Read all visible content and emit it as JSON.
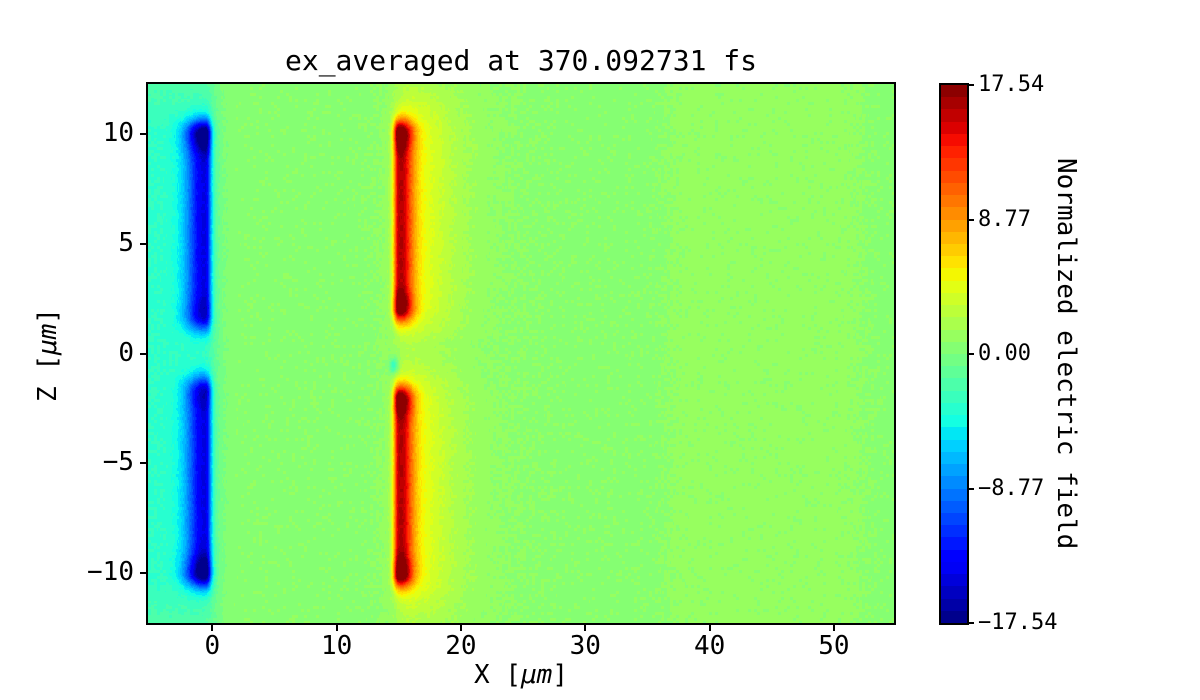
{
  "chart_data": {
    "type": "heatmap",
    "title": "ex_averaged at 370.092731 fs",
    "xlabel_pre": "X [",
    "xlabel_unit": "μm",
    "xlabel_post": "]",
    "ylabel_pre": "Z [",
    "ylabel_unit": "μm",
    "ylabel_post": "]",
    "colorbar_label": "Normalized electric field",
    "colormap": "jet",
    "levels": 44,
    "vmin": -17.54,
    "vmax": 17.54,
    "x_range": [
      -5.17,
      54.83
    ],
    "z_range": [
      -12.3,
      12.3
    ],
    "x_ticks": [
      {
        "value": 0,
        "label": "0"
      },
      {
        "value": 10,
        "label": "10"
      },
      {
        "value": 20,
        "label": "20"
      },
      {
        "value": 30,
        "label": "30"
      },
      {
        "value": 40,
        "label": "40"
      },
      {
        "value": 50,
        "label": "50"
      }
    ],
    "z_ticks": [
      {
        "value": 10,
        "label": "10"
      },
      {
        "value": 5,
        "label": "5"
      },
      {
        "value": 0,
        "label": "0"
      },
      {
        "value": -5,
        "label": "−5"
      },
      {
        "value": -10,
        "label": "−10"
      }
    ],
    "colorbar_ticks": [
      {
        "value": 17.54,
        "label": "17.54"
      },
      {
        "value": 8.77,
        "label": "8.77"
      },
      {
        "value": 0,
        "label": "0.00"
      },
      {
        "value": -8.77,
        "label": "−8.77"
      },
      {
        "value": -17.54,
        "label": "−17.54"
      }
    ],
    "grid": false,
    "background_color": "#ffffff",
    "field_features": [
      {
        "type": "base",
        "value": 0.55
      },
      {
        "type": "noise",
        "amplitude": 0.32,
        "cell": 3
      },
      {
        "type": "xband",
        "from": 36.5,
        "to": 52.3,
        "value": 0.5,
        "edge": 0.9
      },
      {
        "type": "sheet",
        "x": -0.55,
        "amp": -11.5,
        "z_inner": 1.75,
        "z_outer": 10.0,
        "sigma_left": 1.1,
        "sigma_right": 0.35,
        "sigma_z": 0.55,
        "tips": [
          {
            "z": 10.0,
            "amp": -5.5,
            "sigma": 0.55
          },
          {
            "z": -10.0,
            "amp": -5.5,
            "sigma": 0.55
          },
          {
            "z": 1.95,
            "amp": -1.5,
            "sigma": 0.4
          },
          {
            "z": -1.95,
            "amp": -1.5,
            "sigma": 0.4
          }
        ]
      },
      {
        "type": "halo",
        "x": -0.9,
        "amp": -3.8,
        "sigma_left": 99,
        "sigma_right": 0.95,
        "z_flat": 9.5,
        "z_sigma": 3.0,
        "gap_dip": 0,
        "gap_sigma": 1
      },
      {
        "type": "sheet",
        "x": 15.0,
        "amp": 12.2,
        "z_inner": 2.05,
        "z_outer": 10.05,
        "sigma_left": 0.3,
        "sigma_right": 0.8,
        "sigma_z": 0.5,
        "tips": [
          {
            "z": 10.0,
            "amp": 4.9,
            "sigma": 0.5
          },
          {
            "z": -10.0,
            "amp": 4.9,
            "sigma": 0.5
          },
          {
            "z": 2.2,
            "amp": 4.5,
            "sigma": 0.45
          },
          {
            "z": -2.2,
            "amp": 4.5,
            "sigma": 0.45
          }
        ]
      },
      {
        "type": "halo",
        "x": 15.6,
        "amp": 3.4,
        "sigma_left": 0.6,
        "sigma_right": 2.4,
        "z_flat": 9.6,
        "z_sigma": 1.6,
        "gap_dip": 0.75,
        "gap_sigma": 1.0
      },
      {
        "type": "halo",
        "x": 16.0,
        "amp": 1.1,
        "sigma_left": 1.5,
        "sigma_right": 4.5,
        "z_flat": 10.5,
        "z_sigma": 2.5,
        "gap_dip": 0.3,
        "gap_sigma": 1.5
      },
      {
        "type": "blob",
        "x": 14.6,
        "z": -0.55,
        "amp": -4.5,
        "sigma": 0.25
      }
    ]
  }
}
